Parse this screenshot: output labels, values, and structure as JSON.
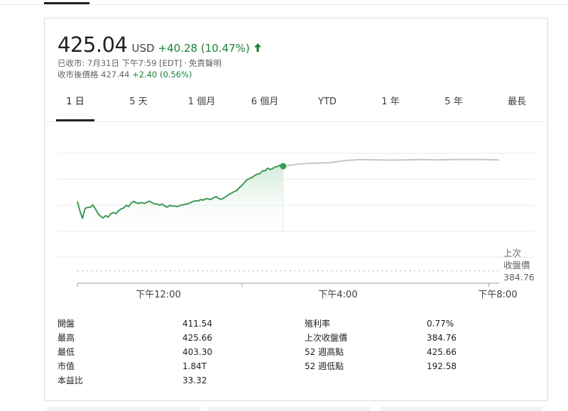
{
  "quote": {
    "price": "425.04",
    "currency": "USD",
    "change": "+40.28 (10.47%)",
    "closed_line": "已收市: 7月31日 下午7:59 [EDT]",
    "disclaimer": "免責聲明",
    "after_hours_label": "收市後價格",
    "after_hours_price": "427.44",
    "after_hours_change": "+2.40 (0.56%)"
  },
  "tabs": [
    "1 日",
    "5 天",
    "1 個月",
    "6 個月",
    "YTD",
    "1 年",
    "5 年",
    "最長"
  ],
  "active_tab": "1 日",
  "colors": {
    "positive": "#188038",
    "line": "#3d9a55",
    "after_hours_line": "#c4c7c5",
    "fill": "#e6f4ea"
  },
  "chart_data": {
    "type": "line",
    "title": "",
    "y_ticks": [
      "430",
      "420",
      "410",
      "400",
      "390",
      "380"
    ],
    "ylim": [
      380,
      433
    ],
    "x_ticks": [
      "下午12:00",
      "下午4:00",
      "下午8:00"
    ],
    "previous_close_label_1": "上次",
    "previous_close_label_2": "收盤價",
    "previous_close_value": "384.76",
    "previous_close": 384.76,
    "series": [
      {
        "session": "regular",
        "x": [
          0,
          0.05,
          0.1,
          0.15,
          0.2,
          0.25,
          0.3,
          0.35,
          0.4,
          0.45,
          0.5,
          0.55,
          0.6,
          0.65,
          0.7,
          0.75,
          0.8,
          0.85,
          0.9,
          0.95,
          1.0,
          1.05,
          1.1,
          1.15,
          1.2,
          1.25,
          1.3,
          1.35,
          1.4,
          1.45,
          1.5,
          1.55,
          1.6,
          1.65,
          1.7,
          1.75,
          1.8,
          1.85,
          1.9,
          1.95,
          2.0,
          2.05,
          2.1,
          2.15,
          2.2,
          2.25,
          2.3,
          2.35,
          2.4,
          2.45,
          2.5,
          2.55,
          2.6,
          2.65,
          2.7,
          2.75,
          2.8,
          2.85,
          2.9,
          2.95,
          3.0,
          3.05,
          3.1,
          3.15,
          3.2,
          3.25,
          3.3,
          3.35,
          3.4,
          3.45,
          3.5,
          3.55,
          3.6,
          3.65,
          3.7,
          3.75,
          3.8,
          3.85,
          3.9,
          3.95,
          4.0
        ],
        "values": [
          411.5,
          407.8,
          405.0,
          408.8,
          409.2,
          409.2,
          410.2,
          408.6,
          406.8,
          405.8,
          405.1,
          406.0,
          405.5,
          406.8,
          407.2,
          406.8,
          407.9,
          408.6,
          409.0,
          410.0,
          409.5,
          411.0,
          411.5,
          410.8,
          410.8,
          411.0,
          410.7,
          411.1,
          411.6,
          411.0,
          410.5,
          410.5,
          410.0,
          410.5,
          409.7,
          409.3,
          410.0,
          409.7,
          409.7,
          409.5,
          410.0,
          410.2,
          410.4,
          410.6,
          411.0,
          411.5,
          411.7,
          411.7,
          412.2,
          412.0,
          412.6,
          412.4,
          412.2,
          413.0,
          413.3,
          412.6,
          412.3,
          412.9,
          413.5,
          414.2,
          414.7,
          415.3,
          415.7,
          416.8,
          417.6,
          418.8,
          419.9,
          420.3,
          420.8,
          421.5,
          422.0,
          422.2,
          423.3,
          423.3,
          424.3,
          423.8,
          424.2,
          424.8,
          425.0,
          425.5,
          425.04
        ]
      },
      {
        "session": "after_hours",
        "x": [
          4.0,
          4.3,
          4.6,
          4.9,
          5.2,
          5.5,
          5.8,
          6.1,
          6.4,
          6.7,
          7.0,
          7.3,
          7.6,
          7.9,
          8.2
        ],
        "values": [
          425.04,
          425.9,
          426.2,
          426.4,
          427.2,
          427.6,
          427.5,
          427.4,
          427.5,
          427.6,
          427.5,
          427.6,
          427.6,
          427.6,
          427.44
        ]
      }
    ]
  },
  "stats": {
    "left": [
      {
        "label": "開盤",
        "value": "411.54"
      },
      {
        "label": "最高",
        "value": "425.66"
      },
      {
        "label": "最低",
        "value": "403.30"
      },
      {
        "label": "市值",
        "value": "1.84T"
      },
      {
        "label": "本益比",
        "value": "33.32"
      }
    ],
    "right": [
      {
        "label": "殖利率",
        "value": "0.77%"
      },
      {
        "label": "上次收盤價",
        "value": "384.76"
      },
      {
        "label": "52 週高點",
        "value": "425.66"
      },
      {
        "label": "52 週低點",
        "value": "192.58"
      }
    ]
  }
}
